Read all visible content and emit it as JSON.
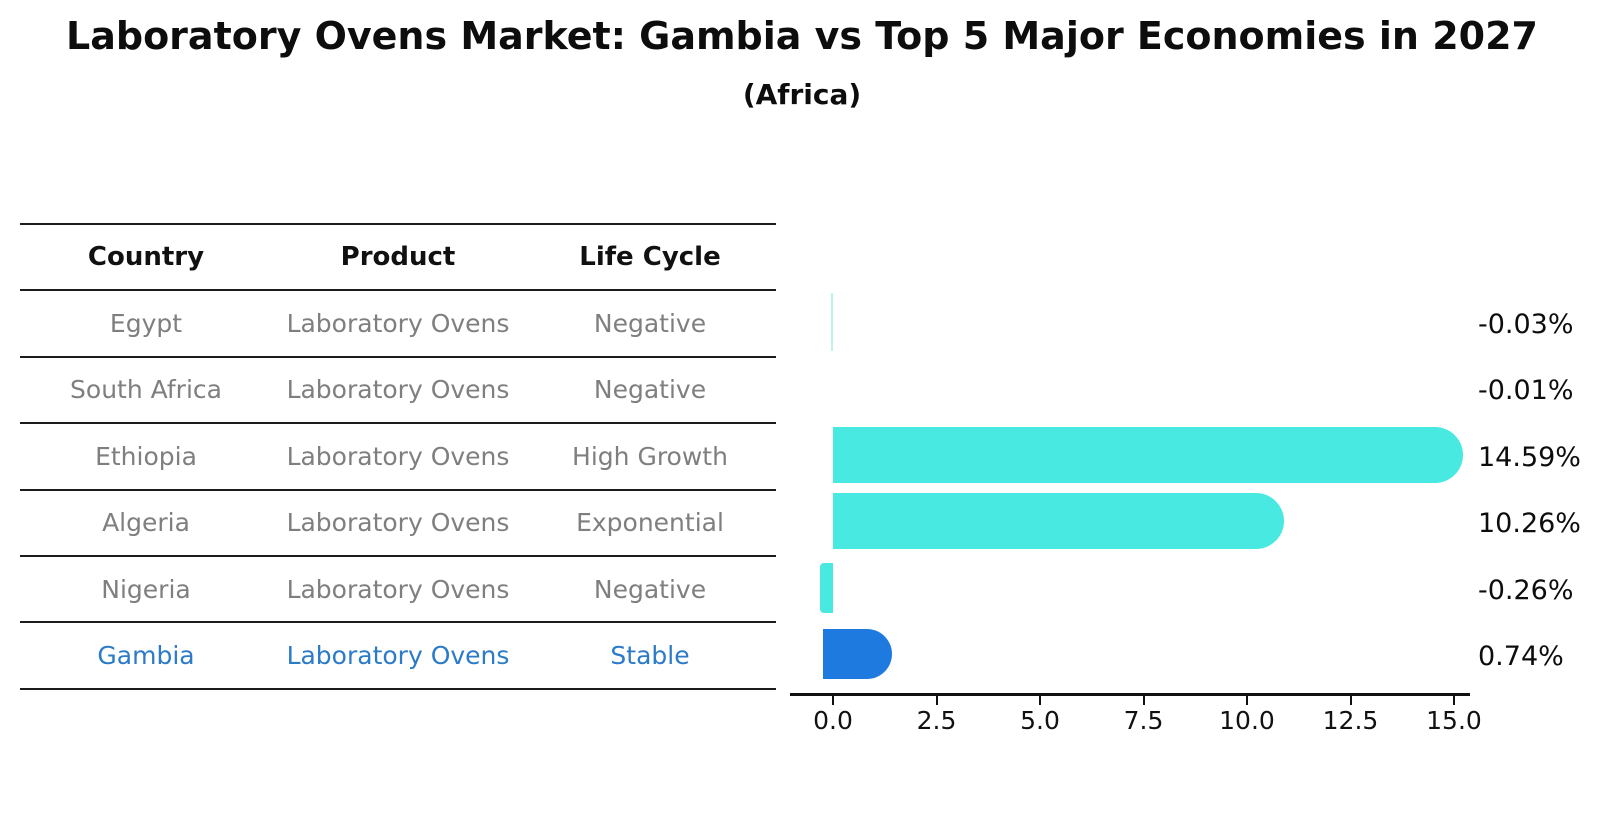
{
  "header": {
    "title": "Laboratory Ovens Market: Gambia vs Top 5 Major Economies in 2027",
    "subtitle": "(Africa)"
  },
  "table": {
    "columns": [
      "Country",
      "Product",
      "Life Cycle"
    ],
    "rows": [
      {
        "country": "Egypt",
        "product": "Laboratory Ovens",
        "life_cycle": "Negative",
        "highlight": false
      },
      {
        "country": "South Africa",
        "product": "Laboratory Ovens",
        "life_cycle": "Negative",
        "highlight": false
      },
      {
        "country": "Ethiopia",
        "product": "Laboratory Ovens",
        "life_cycle": "High Growth",
        "highlight": false
      },
      {
        "country": "Algeria",
        "product": "Laboratory Ovens",
        "life_cycle": "Exponential",
        "highlight": false
      },
      {
        "country": "Nigeria",
        "product": "Laboratory Ovens",
        "life_cycle": "Negative",
        "highlight": false
      },
      {
        "country": "Gambia",
        "product": "Laboratory Ovens",
        "life_cycle": "Stable",
        "highlight": true
      }
    ]
  },
  "chart_data": {
    "type": "bar",
    "orientation": "horizontal",
    "title": "Laboratory Ovens Market: Gambia vs Top 5 Major Economies in 2027",
    "subtitle": "(Africa)",
    "categories": [
      "Egypt",
      "South Africa",
      "Ethiopia",
      "Algeria",
      "Nigeria",
      "Gambia"
    ],
    "values": [
      -0.03,
      -0.01,
      14.59,
      10.26,
      -0.26,
      0.74
    ],
    "value_labels": [
      "-0.03%",
      "-0.01%",
      "14.59%",
      "10.26%",
      "-0.26%",
      "0.74%"
    ],
    "highlight_category": "Gambia",
    "x_ticks": [
      "0.0",
      "2.5",
      "5.0",
      "7.5",
      "10.0",
      "12.5",
      "15.0"
    ],
    "x_tick_values": [
      0,
      2.5,
      5,
      7.5,
      10,
      12.5,
      15
    ],
    "xlim": [
      -1,
      16.4
    ],
    "grid": false,
    "legend": false
  },
  "colors": {
    "bar_default": "#47e9e1",
    "bar_faint": "#bdf2ed",
    "bar_highlight": "#1f7ae0",
    "highlight_text": "#2b7bc9",
    "text_dark": "#111111",
    "text_gray": "#7f7f7f"
  }
}
